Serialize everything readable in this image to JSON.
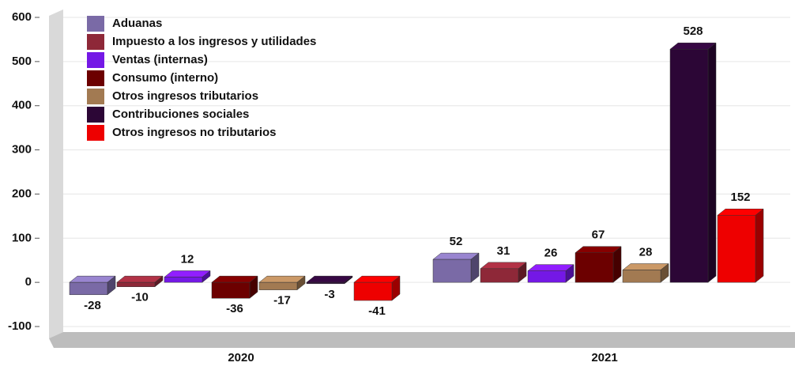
{
  "chart_data": {
    "type": "bar3d",
    "categories": [
      "2020",
      "2021"
    ],
    "series": [
      {
        "name": "Aduanas",
        "color": "#7a6aa6",
        "values": [
          -28,
          52
        ]
      },
      {
        "name": "Impuesto a los ingresos y utilidades",
        "color": "#8e2838",
        "values": [
          -10,
          31
        ]
      },
      {
        "name": "Ventas (internas)",
        "color": "#7418e6",
        "values": [
          12,
          26
        ]
      },
      {
        "name": "Consumo (interno)",
        "color": "#6c0000",
        "values": [
          -36,
          67
        ]
      },
      {
        "name": "Otros ingresos tributarios",
        "color": "#a27a52",
        "values": [
          -17,
          28
        ]
      },
      {
        "name": "Contribuciones sociales",
        "color": "#2c0636",
        "values": [
          -3,
          528
        ]
      },
      {
        "name": "Otros ingresos no tributarios",
        "color": "#ee0000",
        "values": [
          -41,
          152
        ]
      }
    ],
    "ylim": [
      -100,
      600
    ],
    "yticks": [
      -100,
      0,
      100,
      200,
      300,
      400,
      500,
      600
    ],
    "grid": true
  }
}
